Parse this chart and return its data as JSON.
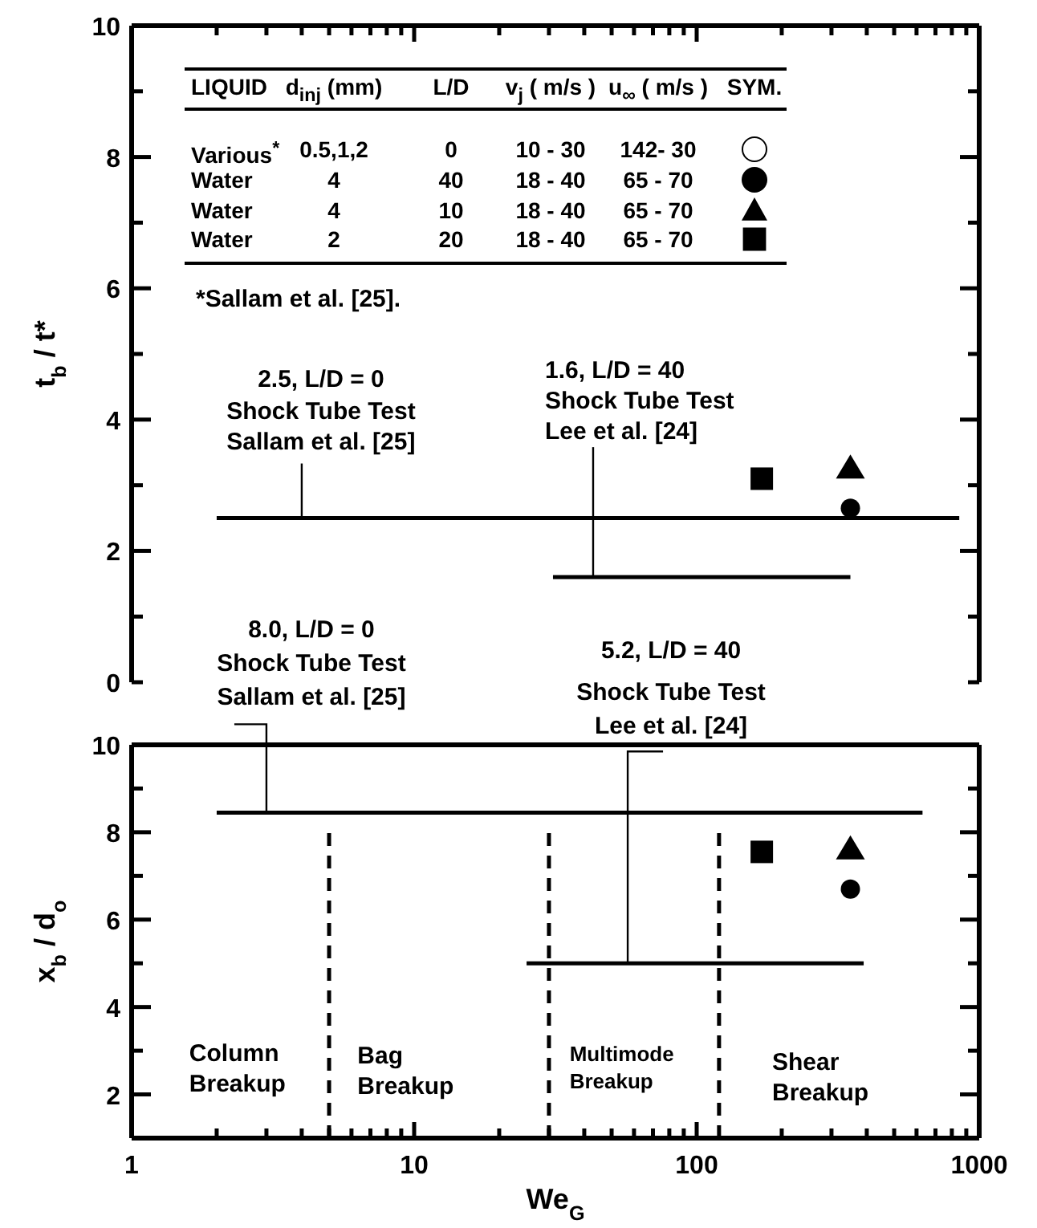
{
  "chart_data": [
    {
      "type": "scatter",
      "ylabel": "t$_{b}$ / t*",
      "log": "x",
      "tick_labels": "y",
      "xlim": [
        1,
        1000
      ],
      "xticks": [
        1,
        {
          "value": 2,
          "label": null
        },
        {
          "value": 3,
          "label": null
        },
        {
          "value": 4,
          "label": null
        },
        {
          "value": 5,
          "label": null
        },
        {
          "value": 6,
          "label": null
        },
        {
          "value": 7,
          "label": null
        },
        {
          "value": 8,
          "label": null
        },
        {
          "value": 9,
          "label": null
        },
        10,
        {
          "value": 20,
          "label": null
        },
        {
          "value": 30,
          "label": null
        },
        {
          "value": 40,
          "label": null
        },
        {
          "value": 50,
          "label": null
        },
        {
          "value": 60,
          "label": null
        },
        {
          "value": 70,
          "label": null
        },
        {
          "value": 80,
          "label": null
        },
        {
          "value": 90,
          "label": null
        },
        100,
        {
          "value": 200,
          "label": null
        },
        {
          "value": 300,
          "label": null
        },
        {
          "value": 400,
          "label": null
        },
        {
          "value": 500,
          "label": null
        },
        {
          "value": 600,
          "label": null
        },
        {
          "value": 700,
          "label": null
        },
        {
          "value": 800,
          "label": null
        },
        {
          "value": 900,
          "label": null
        },
        1000
      ],
      "ylim": [
        0,
        10
      ],
      "yticks": [
        0,
        {
          "value": 1,
          "label": null
        },
        2,
        {
          "value": 3,
          "label": null
        },
        4,
        {
          "value": 5,
          "label": null
        },
        6,
        {
          "value": 7,
          "label": null
        },
        8,
        {
          "value": 9,
          "label": null
        },
        10
      ],
      "annotations": [
        "LIQUID",
        "d$_{inj}$ (mm)",
        "L/D",
        "v$_{j}$ ( m/s )",
        "u$_{∞}$ ( m/s )",
        "SYM.",
        "Various$^{*}$",
        "0.5,1,2",
        "0",
        "10 - 30",
        "142- 30",
        "Water",
        "4",
        "40",
        "18 - 40",
        "65 - 70",
        "Water",
        "4",
        "10",
        "18 - 40",
        "65 - 70",
        "Water",
        "2",
        "20",
        "18 - 40",
        "65 - 70",
        "*Sallam et al. [25].",
        {
          "text": "2.5, L/D = 0\nShock Tube Test\nSallam et al. [25]",
          "x": 4,
          "y": 2.5
        },
        {
          "text": "1.6, L/D = 40\nShock Tube Test\nLee et al. [24]",
          "x": 43,
          "y": 1.6
        }
      ],
      "series": [
        {
          "type": "line",
          "color": "#000000",
          "line_style": "solid",
          "x": [
            2,
            850
          ],
          "values": [
            2.5,
            2.5
          ]
        },
        {
          "type": "line",
          "color": "#000000",
          "line_style": "solid",
          "x": [
            31,
            350
          ],
          "values": [
            1.6,
            1.6
          ]
        },
        {
          "type": "scatter",
          "color": "#000000",
          "marker": "square",
          "x": [
            170
          ],
          "values": [
            3.1
          ]
        },
        {
          "type": "scatter",
          "color": "#000000",
          "marker": "triangle",
          "x": [
            350
          ],
          "values": [
            3.25
          ]
        },
        {
          "type": "scatter",
          "color": "#000000",
          "marker": "circle",
          "x": [
            350
          ],
          "values": [
            2.65
          ]
        }
      ]
    },
    {
      "type": "scatter",
      "ylabel": "x$_{b}$ / d$_{o}$",
      "xlabel": "We$_{G}$",
      "log": "x",
      "xlim": [
        1,
        1000
      ],
      "xticks": [
        1,
        {
          "value": 2,
          "label": null
        },
        {
          "value": 3,
          "label": null
        },
        {
          "value": 4,
          "label": null
        },
        {
          "value": 5,
          "label": null
        },
        {
          "value": 6,
          "label": null
        },
        {
          "value": 7,
          "label": null
        },
        {
          "value": 8,
          "label": null
        },
        {
          "value": 9,
          "label": null
        },
        10,
        {
          "value": 20,
          "label": null
        },
        {
          "value": 30,
          "label": null
        },
        {
          "value": 40,
          "label": null
        },
        {
          "value": 50,
          "label": null
        },
        {
          "value": 60,
          "label": null
        },
        {
          "value": 70,
          "label": null
        },
        {
          "value": 80,
          "label": null
        },
        {
          "value": 90,
          "label": null
        },
        100,
        {
          "value": 200,
          "label": null
        },
        {
          "value": 300,
          "label": null
        },
        {
          "value": 400,
          "label": null
        },
        {
          "value": 500,
          "label": null
        },
        {
          "value": 600,
          "label": null
        },
        {
          "value": 700,
          "label": null
        },
        {
          "value": 800,
          "label": null
        },
        {
          "value": 900,
          "label": null
        },
        1000
      ],
      "ylim": [
        1,
        10
      ],
      "yticks": [
        2,
        {
          "value": 3,
          "label": null
        },
        4,
        {
          "value": 5,
          "label": null
        },
        6,
        {
          "value": 7,
          "label": null
        },
        8,
        {
          "value": 9,
          "label": null
        },
        10
      ],
      "annotations": [
        {
          "text": "8.0, L/D = 0\nShock Tube Test\nSallam et al. [25]",
          "x": 3,
          "y": 8.45
        },
        {
          "text": "5.2, L/D = 40\nShock Tube Test\nLee et al. [24]",
          "x": 57,
          "y": 5.0
        },
        "Column\nBreakup",
        "Bag\nBreakup",
        "Multimode\nBreakup",
        "Shear\nBreakup"
      ],
      "series": [
        {
          "type": "line",
          "color": "#000000",
          "line_style": "solid",
          "x": [
            2,
            630
          ],
          "values": [
            8.45,
            8.45
          ]
        },
        {
          "type": "line",
          "color": "#000000",
          "line_style": "solid",
          "x": [
            25,
            390
          ],
          "values": [
            5.0,
            5.0
          ]
        },
        {
          "type": "line",
          "color": "#000000",
          "line_style": "dashed",
          "x": [
            5,
            5
          ],
          "values": [
            1,
            8
          ]
        },
        {
          "type": "line",
          "color": "#000000",
          "line_style": "dashed",
          "x": [
            30,
            30
          ],
          "values": [
            1,
            8
          ]
        },
        {
          "type": "line",
          "color": "#000000",
          "line_style": "dashed",
          "x": [
            120,
            120
          ],
          "values": [
            1,
            8
          ]
        },
        {
          "type": "scatter",
          "color": "#000000",
          "marker": "square",
          "x": [
            170
          ],
          "values": [
            7.55
          ]
        },
        {
          "type": "scatter",
          "color": "#000000",
          "marker": "triangle",
          "x": [
            350
          ],
          "values": [
            7.6
          ]
        },
        {
          "type": "scatter",
          "color": "#000000",
          "marker": "circle",
          "x": [
            350
          ],
          "values": [
            6.7
          ]
        }
      ]
    }
  ]
}
